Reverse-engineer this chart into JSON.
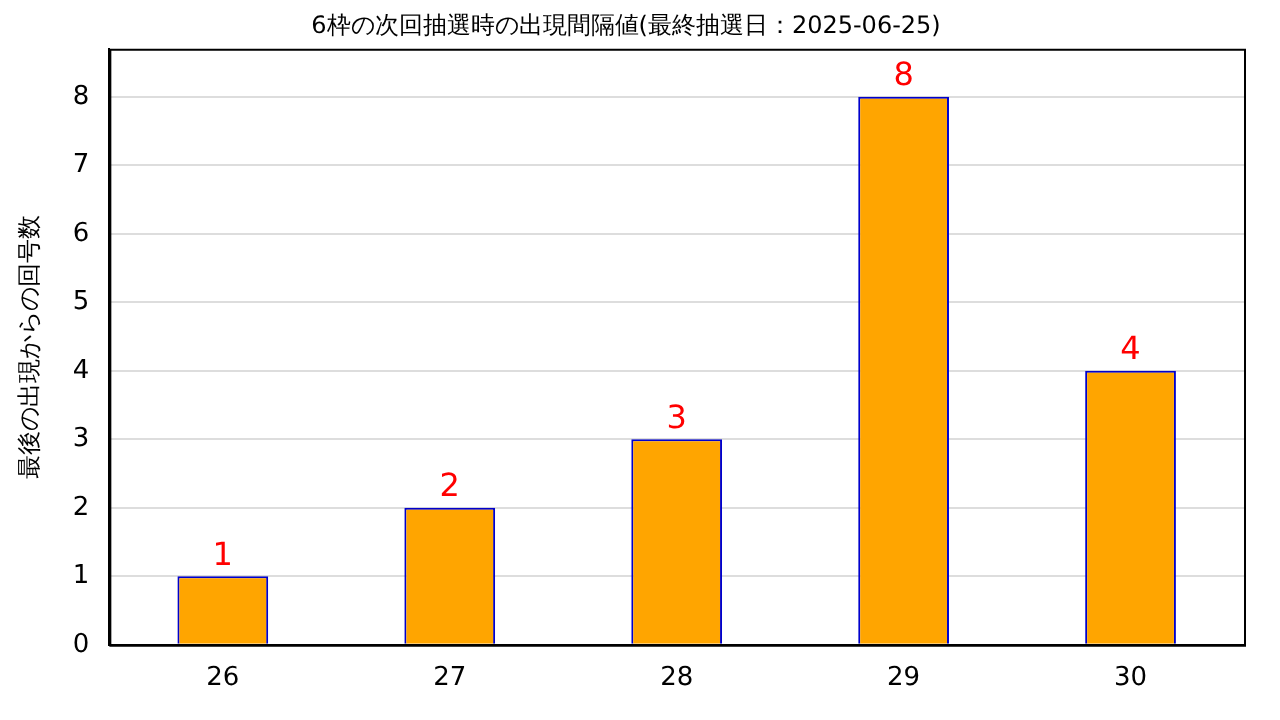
{
  "chart_data": {
    "type": "bar",
    "title": "6枠の次回抽選時の出現間隔値(最終抽選日：2025-06-25)",
    "ylabel": "最後の出現からの回号数",
    "categories": [
      "26",
      "27",
      "28",
      "29",
      "30"
    ],
    "values": [
      1,
      2,
      3,
      8,
      4
    ],
    "color": "#ffa500",
    "ylim": [
      0,
      8.7
    ],
    "yticks": [
      0,
      1,
      2,
      3,
      4,
      5,
      6,
      7,
      8
    ],
    "grid": "y",
    "data_labels": true,
    "legend": false
  }
}
